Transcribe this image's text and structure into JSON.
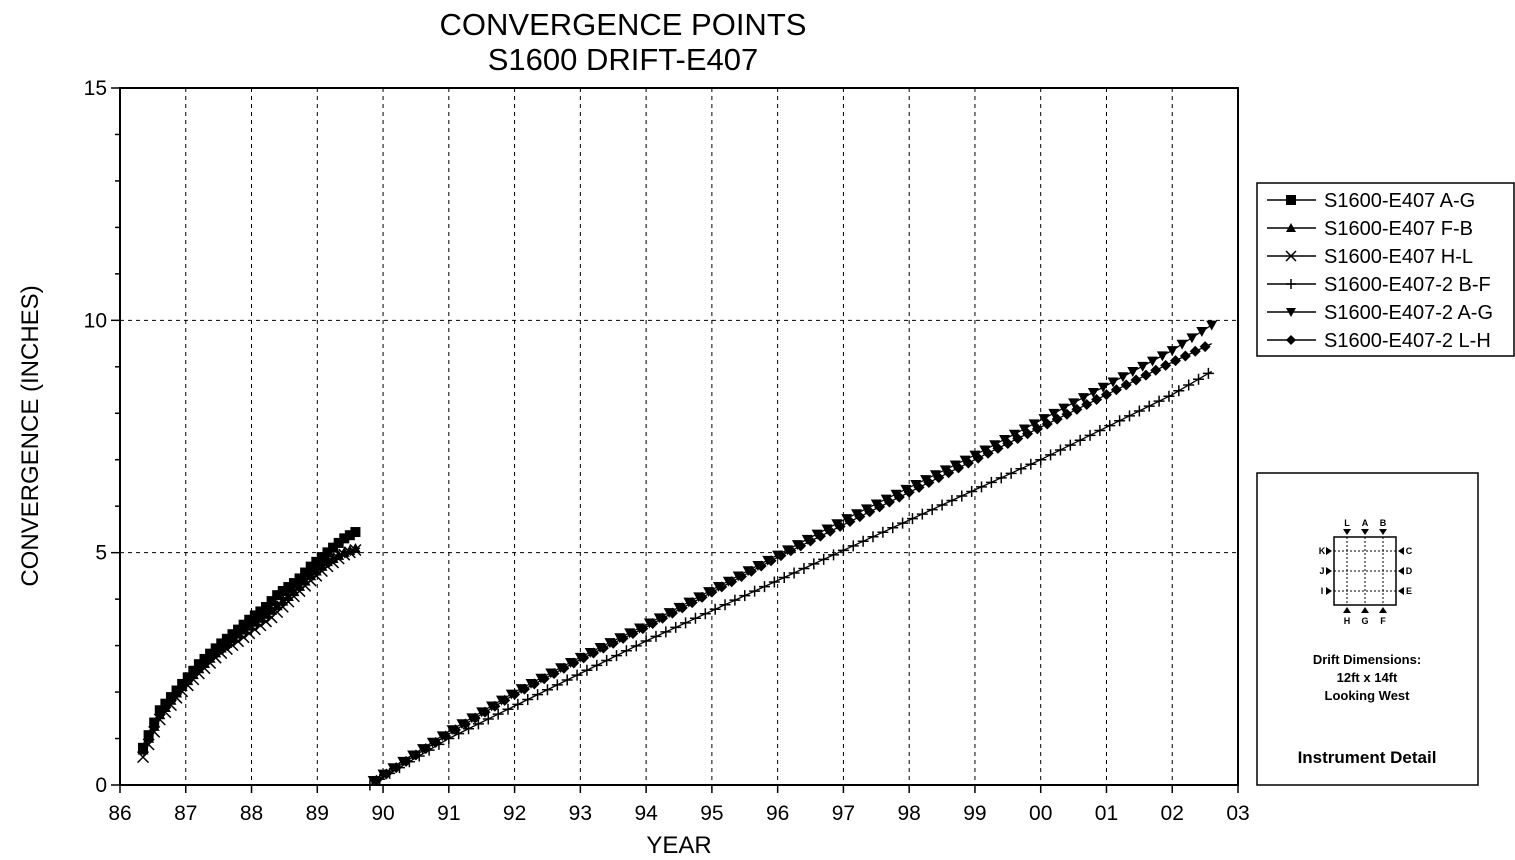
{
  "chart_data": {
    "type": "line",
    "title": "CONVERGENCE POINTS",
    "subtitle": "S1600 DRIFT-E407",
    "xlabel": "YEAR",
    "ylabel": "CONVERGENCE (INCHES)",
    "xlim": [
      1986,
      2003
    ],
    "ylim": [
      0,
      15
    ],
    "x_tick_labels": [
      "86",
      "87",
      "88",
      "89",
      "90",
      "91",
      "92",
      "93",
      "94",
      "95",
      "96",
      "97",
      "98",
      "99",
      "00",
      "01",
      "02",
      "03"
    ],
    "y_ticks": [
      0,
      5,
      10,
      15
    ],
    "grid": true,
    "legend_position": "right",
    "series": [
      {
        "name": "S1600-E407 A-G",
        "marker": "square",
        "points": [
          [
            1986.35,
            0.8
          ],
          [
            1986.6,
            1.6
          ],
          [
            1986.9,
            2.1
          ],
          [
            1987.2,
            2.6
          ],
          [
            1987.5,
            3.0
          ],
          [
            1987.8,
            3.35
          ],
          [
            1988.0,
            3.6
          ],
          [
            1988.2,
            3.8
          ],
          [
            1988.4,
            4.1
          ],
          [
            1988.7,
            4.4
          ],
          [
            1988.9,
            4.7
          ],
          [
            1989.15,
            5.0
          ],
          [
            1989.4,
            5.3
          ],
          [
            1989.65,
            5.5
          ]
        ]
      },
      {
        "name": "S1600-E407 F-B",
        "marker": "triangle-up",
        "points": [
          [
            1986.35,
            0.75
          ],
          [
            1986.6,
            1.5
          ],
          [
            1986.9,
            2.05
          ],
          [
            1987.2,
            2.5
          ],
          [
            1987.5,
            2.9
          ],
          [
            1987.8,
            3.25
          ],
          [
            1988.0,
            3.45
          ],
          [
            1988.3,
            3.75
          ],
          [
            1988.6,
            4.1
          ],
          [
            1988.9,
            4.5
          ],
          [
            1989.15,
            4.8
          ],
          [
            1989.4,
            5.0
          ],
          [
            1989.6,
            5.1
          ]
        ]
      },
      {
        "name": "S1600-E407 H-L",
        "marker": "x",
        "points": [
          [
            1986.35,
            0.6
          ],
          [
            1986.6,
            1.4
          ],
          [
            1986.9,
            1.95
          ],
          [
            1987.2,
            2.4
          ],
          [
            1987.5,
            2.8
          ],
          [
            1987.8,
            3.1
          ],
          [
            1988.0,
            3.3
          ],
          [
            1988.3,
            3.6
          ],
          [
            1988.6,
            4.0
          ],
          [
            1988.9,
            4.4
          ],
          [
            1989.15,
            4.7
          ],
          [
            1989.4,
            4.95
          ],
          [
            1989.65,
            5.1
          ]
        ]
      },
      {
        "name": "S1600-E407-2 B-F",
        "marker": "plus",
        "points": [
          [
            1989.8,
            0.0
          ],
          [
            1991.0,
            1.0
          ],
          [
            1992.0,
            1.7
          ],
          [
            1993.0,
            2.4
          ],
          [
            1994.0,
            3.1
          ],
          [
            1995.0,
            3.75
          ],
          [
            1996.0,
            4.4
          ],
          [
            1997.0,
            5.05
          ],
          [
            1998.0,
            5.7
          ],
          [
            1999.0,
            6.35
          ],
          [
            2000.0,
            7.0
          ],
          [
            2001.0,
            7.7
          ],
          [
            2002.0,
            8.4
          ],
          [
            2002.6,
            8.9
          ]
        ]
      },
      {
        "name": "S1600-E407-2 A-G",
        "marker": "triangle-down",
        "points": [
          [
            1989.85,
            0.1
          ],
          [
            1991.0,
            1.15
          ],
          [
            1992.0,
            2.0
          ],
          [
            1993.0,
            2.75
          ],
          [
            1994.0,
            3.45
          ],
          [
            1995.0,
            4.2
          ],
          [
            1996.0,
            4.95
          ],
          [
            1997.0,
            5.7
          ],
          [
            1998.0,
            6.4
          ],
          [
            1999.0,
            7.1
          ],
          [
            2000.0,
            7.85
          ],
          [
            2001.0,
            8.6
          ],
          [
            2002.0,
            9.35
          ],
          [
            2002.6,
            9.9
          ]
        ]
      },
      {
        "name": "S1600-E407-2 L-H",
        "marker": "diamond",
        "points": [
          [
            1989.9,
            0.1
          ],
          [
            1991.0,
            1.1
          ],
          [
            1992.0,
            1.95
          ],
          [
            1993.0,
            2.7
          ],
          [
            1994.0,
            3.4
          ],
          [
            1995.0,
            4.15
          ],
          [
            1996.0,
            4.9
          ],
          [
            1997.0,
            5.6
          ],
          [
            1998.0,
            6.3
          ],
          [
            1999.0,
            7.0
          ],
          [
            2000.0,
            7.7
          ],
          [
            2001.0,
            8.4
          ],
          [
            2002.0,
            9.1
          ],
          [
            2002.6,
            9.5
          ]
        ]
      }
    ]
  },
  "instrument_detail": {
    "top_labels": [
      "L",
      "A",
      "B"
    ],
    "bottom_labels": [
      "H",
      "G",
      "F"
    ],
    "left_labels": [
      "K",
      "J",
      "I"
    ],
    "right_labels": [
      "C",
      "D",
      "E"
    ],
    "dimension_title": "Drift Dimensions:",
    "dimension_value": "12ft x 14ft",
    "direction": "Looking West",
    "caption": "Instrument Detail"
  },
  "colors": {
    "line": "#000000",
    "grid": "#000000",
    "background": "#ffffff"
  }
}
